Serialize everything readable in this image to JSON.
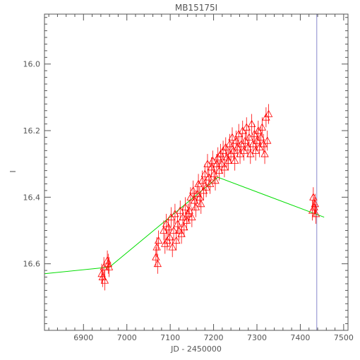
{
  "chart_data": {
    "type": "scatter",
    "title": "MB15175I",
    "xlabel": "JD - 2450000",
    "ylabel": "I",
    "xlim": [
      6810,
      7510
    ],
    "ylim": [
      16.8,
      15.85
    ],
    "y_inverted": true,
    "x_ticks": [
      6900,
      7000,
      7100,
      7200,
      7300,
      7400,
      7500
    ],
    "x_tick_labels": [
      "6900",
      "7000",
      "7100",
      "7200",
      "7300",
      "7400",
      "7500"
    ],
    "y_ticks": [
      16.0,
      16.2,
      16.4,
      16.6
    ],
    "y_tick_labels": [
      "16.0",
      "16.2",
      "16.4",
      "16.6"
    ],
    "grid": false,
    "colors": {
      "data": "#ff0000",
      "model": "#00dd00",
      "marker_line": "#8888cc",
      "axes": "#555555"
    },
    "series": [
      {
        "marker": "triangle-with-errorbars",
        "x": [
          6942,
          6944,
          6947,
          6949,
          6955,
          6957,
          6959,
          7067,
          7069,
          7071,
          7073,
          7085,
          7088,
          7091,
          7093,
          7096,
          7099,
          7102,
          7105,
          7108,
          7111,
          7114,
          7117,
          7120,
          7123,
          7126,
          7129,
          7132,
          7135,
          7138,
          7141,
          7144,
          7147,
          7150,
          7153,
          7156,
          7159,
          7162,
          7165,
          7168,
          7171,
          7174,
          7177,
          7180,
          7183,
          7186,
          7189,
          7192,
          7195,
          7198,
          7201,
          7204,
          7207,
          7210,
          7213,
          7216,
          7219,
          7222,
          7225,
          7228,
          7231,
          7234,
          7237,
          7240,
          7243,
          7246,
          7249,
          7252,
          7255,
          7258,
          7261,
          7264,
          7267,
          7270,
          7273,
          7276,
          7279,
          7282,
          7285,
          7288,
          7291,
          7294,
          7297,
          7300,
          7303,
          7306,
          7309,
          7312,
          7315,
          7318,
          7321,
          7324,
          7327,
          7428,
          7430,
          7432,
          7434,
          7436
        ],
        "y": [
          16.63,
          16.64,
          16.61,
          16.65,
          16.59,
          16.6,
          16.61,
          16.58,
          16.55,
          16.6,
          16.53,
          16.5,
          16.54,
          16.48,
          16.53,
          16.49,
          16.52,
          16.46,
          16.55,
          16.5,
          16.45,
          16.53,
          16.48,
          16.5,
          16.44,
          16.51,
          16.46,
          16.49,
          16.43,
          16.47,
          16.45,
          16.44,
          16.4,
          16.46,
          16.38,
          16.41,
          16.43,
          16.39,
          16.36,
          16.4,
          16.42,
          16.35,
          16.38,
          16.33,
          16.37,
          16.3,
          16.34,
          16.36,
          16.31,
          16.29,
          16.33,
          16.35,
          16.3,
          16.28,
          16.32,
          16.27,
          16.3,
          16.26,
          16.31,
          16.25,
          16.28,
          16.29,
          16.24,
          16.27,
          16.22,
          16.26,
          16.29,
          16.23,
          16.25,
          16.21,
          16.27,
          16.24,
          16.2,
          16.26,
          16.23,
          16.19,
          16.25,
          16.22,
          16.27,
          16.18,
          16.24,
          16.21,
          16.26,
          16.23,
          16.2,
          16.25,
          16.22,
          16.19,
          16.24,
          16.27,
          16.16,
          16.23,
          16.15,
          16.44,
          16.4,
          16.43,
          16.42,
          16.45
        ],
        "yerr": [
          0.03,
          0.03,
          0.03,
          0.03,
          0.03,
          0.03,
          0.03,
          0.03,
          0.03,
          0.03,
          0.03,
          0.03,
          0.03,
          0.03,
          0.03,
          0.03,
          0.03,
          0.03,
          0.03,
          0.03,
          0.03,
          0.03,
          0.03,
          0.03,
          0.03,
          0.03,
          0.03,
          0.03,
          0.03,
          0.03,
          0.03,
          0.03,
          0.03,
          0.03,
          0.03,
          0.03,
          0.03,
          0.03,
          0.03,
          0.03,
          0.03,
          0.03,
          0.03,
          0.03,
          0.03,
          0.03,
          0.03,
          0.03,
          0.03,
          0.03,
          0.03,
          0.03,
          0.03,
          0.03,
          0.03,
          0.03,
          0.03,
          0.03,
          0.03,
          0.03,
          0.03,
          0.03,
          0.03,
          0.03,
          0.03,
          0.03,
          0.03,
          0.03,
          0.03,
          0.03,
          0.03,
          0.03,
          0.03,
          0.03,
          0.03,
          0.03,
          0.03,
          0.03,
          0.03,
          0.03,
          0.03,
          0.03,
          0.03,
          0.03,
          0.03,
          0.03,
          0.03,
          0.03,
          0.03,
          0.03,
          0.03,
          0.03,
          0.03,
          0.03,
          0.03,
          0.03,
          0.03,
          0.03
        ]
      },
      {
        "marker": "line",
        "x": [
          6810,
          6960,
          7210,
          7455
        ],
        "y": [
          16.63,
          16.61,
          16.34,
          16.46
        ]
      }
    ],
    "vertical_line_x": 7438
  }
}
